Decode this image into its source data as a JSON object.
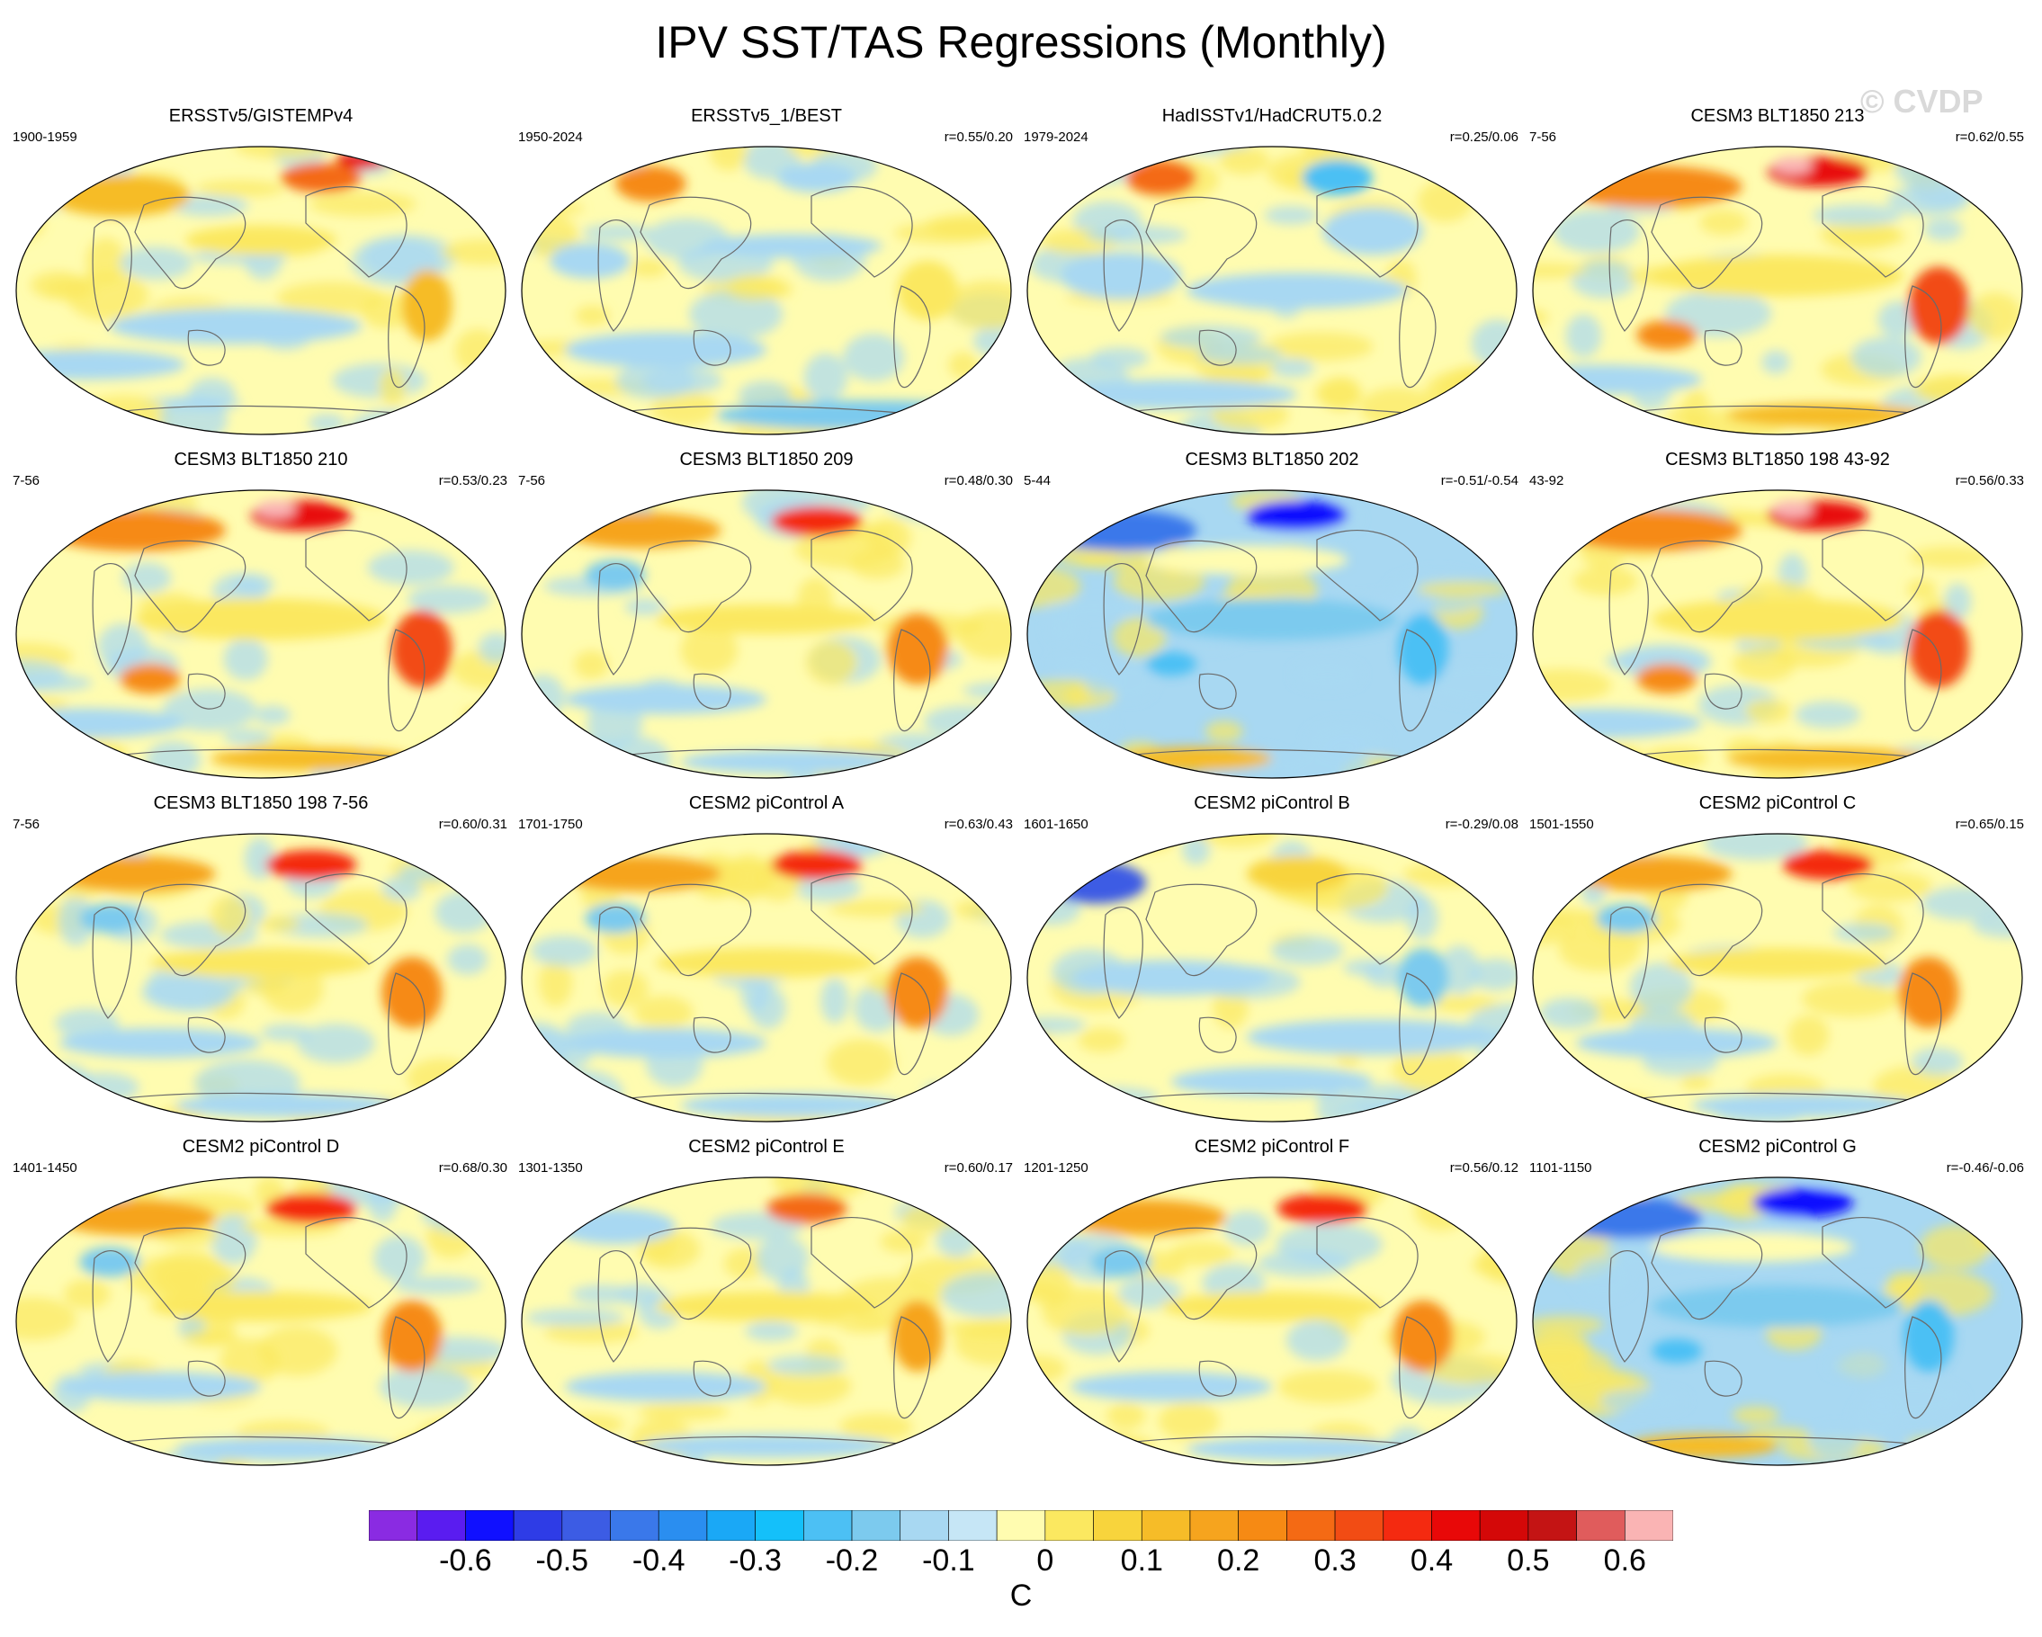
{
  "title": "IPV SST/TAS Regressions (Monthly)",
  "watermark": "© CVDP",
  "panels": [
    {
      "title": "ERSSTv5/GISTEMPv4",
      "left": "1900-1959",
      "right": "",
      "pattern": "obs_early"
    },
    {
      "title": "ERSSTv5_1/BEST",
      "left": "1950-2024",
      "right": "r=0.55/0.20",
      "pattern": "obs_mid"
    },
    {
      "title": "HadISSTv1/HadCRUT5.0.2",
      "left": "1979-2024",
      "right": "r=0.25/0.06",
      "pattern": "obs_late"
    },
    {
      "title": "CESM3 BLT1850 213",
      "left": "7-56",
      "right": "r=0.62/0.55",
      "pattern": "warm_strong"
    },
    {
      "title": "CESM3 BLT1850 210",
      "left": "7-56",
      "right": "r=0.53/0.23",
      "pattern": "warm_strong"
    },
    {
      "title": "CESM3 BLT1850 209",
      "left": "7-56",
      "right": "r=0.48/0.30",
      "pattern": "warm"
    },
    {
      "title": "CESM3 BLT1850 202",
      "left": "5-44",
      "right": "r=-0.51/-0.54",
      "pattern": "cold"
    },
    {
      "title": "CESM3 BLT1850 198 43-92",
      "left": "43-92",
      "right": "r=0.56/0.33",
      "pattern": "warm_strong"
    },
    {
      "title": "CESM3 BLT1850 198 7-56",
      "left": "7-56",
      "right": "r=0.60/0.31",
      "pattern": "warm"
    },
    {
      "title": "CESM2 piControl A",
      "left": "1701-1750",
      "right": "r=0.63/0.43",
      "pattern": "warm"
    },
    {
      "title": "CESM2 piControl B",
      "left": "1601-1650",
      "right": "r=-0.29/0.08",
      "pattern": "mixed_cold"
    },
    {
      "title": "CESM2 piControl C",
      "left": "1501-1550",
      "right": "r=0.65/0.15",
      "pattern": "warm"
    },
    {
      "title": "CESM2 piControl D",
      "left": "1401-1450",
      "right": "r=0.68/0.30",
      "pattern": "warm"
    },
    {
      "title": "CESM2 piControl E",
      "left": "1301-1350",
      "right": "r=0.60/0.17",
      "pattern": "mild"
    },
    {
      "title": "CESM2 piControl F",
      "left": "1201-1250",
      "right": "r=0.56/0.12",
      "pattern": "warm"
    },
    {
      "title": "CESM2 piControl G",
      "left": "1101-1150",
      "right": "r=-0.46/-0.06",
      "pattern": "cold"
    }
  ],
  "colorbar": {
    "colors": [
      "#8a2be2",
      "#5a1cf0",
      "#1010ff",
      "#2e3ce6",
      "#3c5ce4",
      "#3a78ea",
      "#2a8ef0",
      "#1aa8f6",
      "#14c0fa",
      "#4cc0f4",
      "#7ccaee",
      "#a8d8f2",
      "#c6e6f6",
      "#fffcb0",
      "#fbe860",
      "#f8d43c",
      "#f6bc28",
      "#f6a41e",
      "#f68a14",
      "#f46a14",
      "#f24c14",
      "#f42a10",
      "#e80808",
      "#d40808",
      "#c41414",
      "#e05c5c",
      "#fab4b4"
    ],
    "tick_labels": [
      "-0.6",
      "-0.5",
      "-0.4",
      "-0.3",
      "-0.2",
      "-0.1",
      "0",
      "0.1",
      "0.2",
      "0.3",
      "0.4",
      "0.5",
      "0.6"
    ],
    "unit": "C"
  }
}
